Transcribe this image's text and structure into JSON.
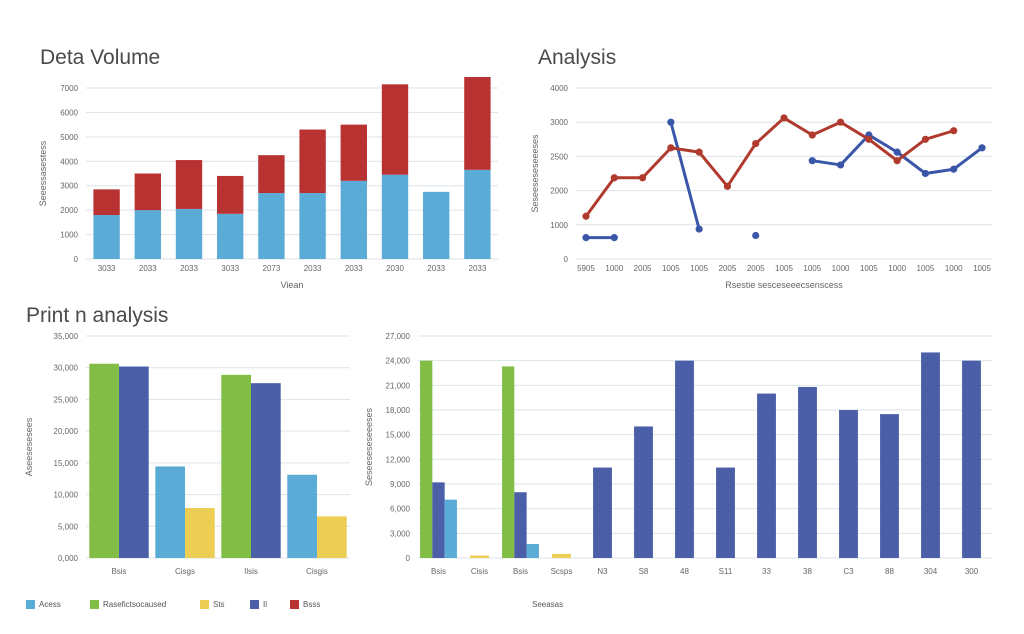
{
  "titles": {
    "top_left": "Deta Volume",
    "top_right": "Analysis",
    "bottom": "Print n analysis"
  },
  "colors": {
    "light_blue": "#5aabd6",
    "red": "#b83232",
    "green": "#82bd45",
    "navy": "#4a5fa8",
    "yellow": "#ecce55",
    "line_blue": "#3a56a8",
    "line_red": "#b03a2e",
    "grid": "#dde3ea"
  },
  "legend": [
    {
      "label": "Acess",
      "color": "#5aabd6"
    },
    {
      "label": "Rasefictsocaused",
      "color": "#82bd45"
    },
    {
      "label": "Sts",
      "color": "#ecce55"
    },
    {
      "label": "Il",
      "color": "#4a5fa8"
    },
    {
      "label": "Bsss",
      "color": "#b83232"
    }
  ],
  "footer_label": "Seeasas",
  "chart_data": [
    {
      "type": "bar",
      "title": "Deta Volume",
      "stacked": true,
      "categories": [
        "3033",
        "2033",
        "2033",
        "3033",
        "2073",
        "2033",
        "2033",
        "2030",
        "2033",
        "2033"
      ],
      "series": [
        {
          "color": "#5aabd6",
          "values": [
            1800,
            2000,
            2050,
            1850,
            2700,
            2700,
            3200,
            3450,
            2750,
            3650
          ]
        },
        {
          "color": "#b83232",
          "values": [
            1050,
            1500,
            2000,
            1550,
            1550,
            2600,
            2300,
            3700,
            0,
            3800
          ]
        }
      ],
      "yticks": [
        "0",
        "1000",
        "2000",
        "3000",
        "4000",
        "5000",
        "6000",
        "7000"
      ],
      "ylim": [
        0,
        7000
      ],
      "xlabel": "Viean",
      "ylabel": "Seeessasestess",
      "grid": true
    },
    {
      "type": "line",
      "title": "Analysis",
      "categories": [
        "5905",
        "1000",
        "2005",
        "1005",
        "1005",
        "2005",
        "2005",
        "1005",
        "1005",
        "1000",
        "1005",
        "1000",
        "1005",
        "1000",
        "1005"
      ],
      "series": [
        {
          "color": "#3a56a8",
          "values": [
            500,
            500,
            null,
            3200,
            700,
            null,
            550,
            null,
            2300,
            2200,
            2900,
            2500,
            2000,
            2100,
            2600
          ]
        },
        {
          "color": "#b03a2e",
          "values": [
            1000,
            1900,
            1900,
            2600,
            2500,
            1700,
            2700,
            3300,
            2900,
            3200,
            2800,
            2300,
            2800,
            3000,
            null
          ]
        }
      ],
      "yticks": [
        "0",
        "1000",
        "2000",
        "2500",
        "3000",
        "4000"
      ],
      "ylim": [
        0,
        4000
      ],
      "xlabel": "Rsestie sesceseeecsenscess",
      "ylabel": "Seseeseseseeeses",
      "grid": true
    },
    {
      "type": "bar",
      "title": "Print n analysis",
      "categories": [
        "Bsis",
        "Cisgs",
        "Ilsis",
        "Cisgis"
      ],
      "series": [
        {
          "color": "#82bd45",
          "values": [
            35000,
            null,
            33000,
            null
          ]
        },
        {
          "color": "#4a5fa8",
          "values": [
            34500,
            null,
            31500,
            null
          ]
        },
        {
          "color": "#5aabd6",
          "values": [
            null,
            16500,
            null,
            15000
          ]
        },
        {
          "color": "#ecce55",
          "values": [
            null,
            9000,
            null,
            7500
          ]
        }
      ],
      "yticks": [
        "0,000",
        "5,000",
        "10,000",
        "15,000",
        "20,000",
        "25,000",
        "30,000",
        "35,000"
      ],
      "ylim": [
        0,
        40000
      ],
      "ylabel": "Aseesesesees",
      "grid": true
    },
    {
      "type": "bar",
      "categories": [
        "Bsis",
        "Cisis",
        "Bsis",
        "Scsps",
        "N3",
        "S8",
        "48",
        "S11",
        "33",
        "38",
        "C3",
        "88",
        "304",
        "300"
      ],
      "series": [
        {
          "color": "#82bd45",
          "values": [
            24000,
            null,
            23300,
            null,
            null,
            null,
            null,
            null,
            null,
            null,
            null,
            null,
            null,
            null
          ]
        },
        {
          "color": "#4a5fa8",
          "values": [
            9200,
            null,
            8000,
            null,
            11000,
            16000,
            24000,
            11000,
            20000,
            20800,
            18000,
            17500,
            25000,
            24000
          ]
        },
        {
          "color": "#5aabd6",
          "values": [
            7100,
            null,
            1700,
            null,
            null,
            null,
            null,
            null,
            null,
            null,
            null,
            null,
            null,
            null
          ]
        },
        {
          "color": "#ecce55",
          "values": [
            null,
            300,
            null,
            500,
            null,
            null,
            null,
            null,
            null,
            null,
            null,
            null,
            null,
            null
          ]
        }
      ],
      "yticks": [
        "0",
        "3,000",
        "6,000",
        "9,000",
        "12,000",
        "15,000",
        "18,000",
        "21,000",
        "24,000",
        "27,000"
      ],
      "ylim": [
        0,
        27000
      ],
      "ylabel": "Seseeseseseeeses",
      "grid": true
    }
  ]
}
